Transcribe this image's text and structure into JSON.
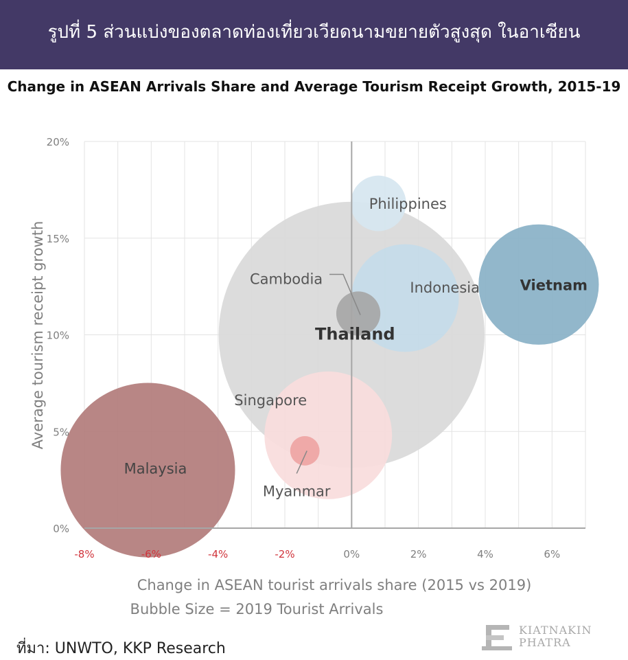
{
  "header": {
    "banner_title": "รูปที่ 5 ส่วนแบ่งของตลาดท่องเที่ยวเวียดนามขยายตัวสูงสุด ในอาเซียน"
  },
  "footer": {
    "source": "ที่มา: UNWTO, KKP Research",
    "logo_line1": "KIATNAKIN",
    "logo_line2": "PHATRA"
  },
  "chart_data": {
    "type": "scatter",
    "title": "Change in ASEAN Arrivals Share and Average Tourism Receipt Growth, 2015-19",
    "xlabel": "Change in ASEAN tourist arrivals share (2015 vs 2019)",
    "xlabel_note": "Bubble Size = 2019 Tourist Arrivals",
    "ylabel": "Average tourism receipt growth",
    "xlim": [
      -8,
      7
    ],
    "ylim": [
      0,
      20
    ],
    "x_ticks": [
      -8,
      -6,
      -4,
      -2,
      0,
      2,
      4,
      6
    ],
    "x_tick_labels": [
      "-8%",
      "-6%",
      "-4%",
      "-2%",
      "0%",
      "2%",
      "4%",
      "6%"
    ],
    "y_ticks": [
      0,
      5,
      10,
      15,
      20
    ],
    "y_tick_labels": [
      "0%",
      "5%",
      "10%",
      "15%",
      "20%"
    ],
    "negative_tick_color": "#d0343c",
    "grid": true,
    "series": [
      {
        "name": "Thailand",
        "x": 0.0,
        "y": 10.0,
        "size": 39.8,
        "color": "#d9d9d9"
      },
      {
        "name": "Malaysia",
        "x": -6.1,
        "y": 3.0,
        "size": 26.1,
        "color": "#b27c7b"
      },
      {
        "name": "Vietnam",
        "x": 5.6,
        "y": 12.6,
        "size": 18.0,
        "color": "#89b1c7"
      },
      {
        "name": "Singapore",
        "x": -0.7,
        "y": 4.8,
        "size": 19.1,
        "color": "#f8dcdc"
      },
      {
        "name": "Indonesia",
        "x": 1.6,
        "y": 11.9,
        "size": 16.1,
        "color": "#c4dbe9"
      },
      {
        "name": "Philippines",
        "x": 0.8,
        "y": 16.8,
        "size": 8.3,
        "color": "#d6e6f0"
      },
      {
        "name": "Cambodia",
        "x": 0.2,
        "y": 11.1,
        "size": 6.6,
        "color": "#a6a6a6"
      },
      {
        "name": "Myanmar",
        "x": -1.4,
        "y": 4.0,
        "size": 4.4,
        "color": "#eea4a3"
      }
    ]
  }
}
